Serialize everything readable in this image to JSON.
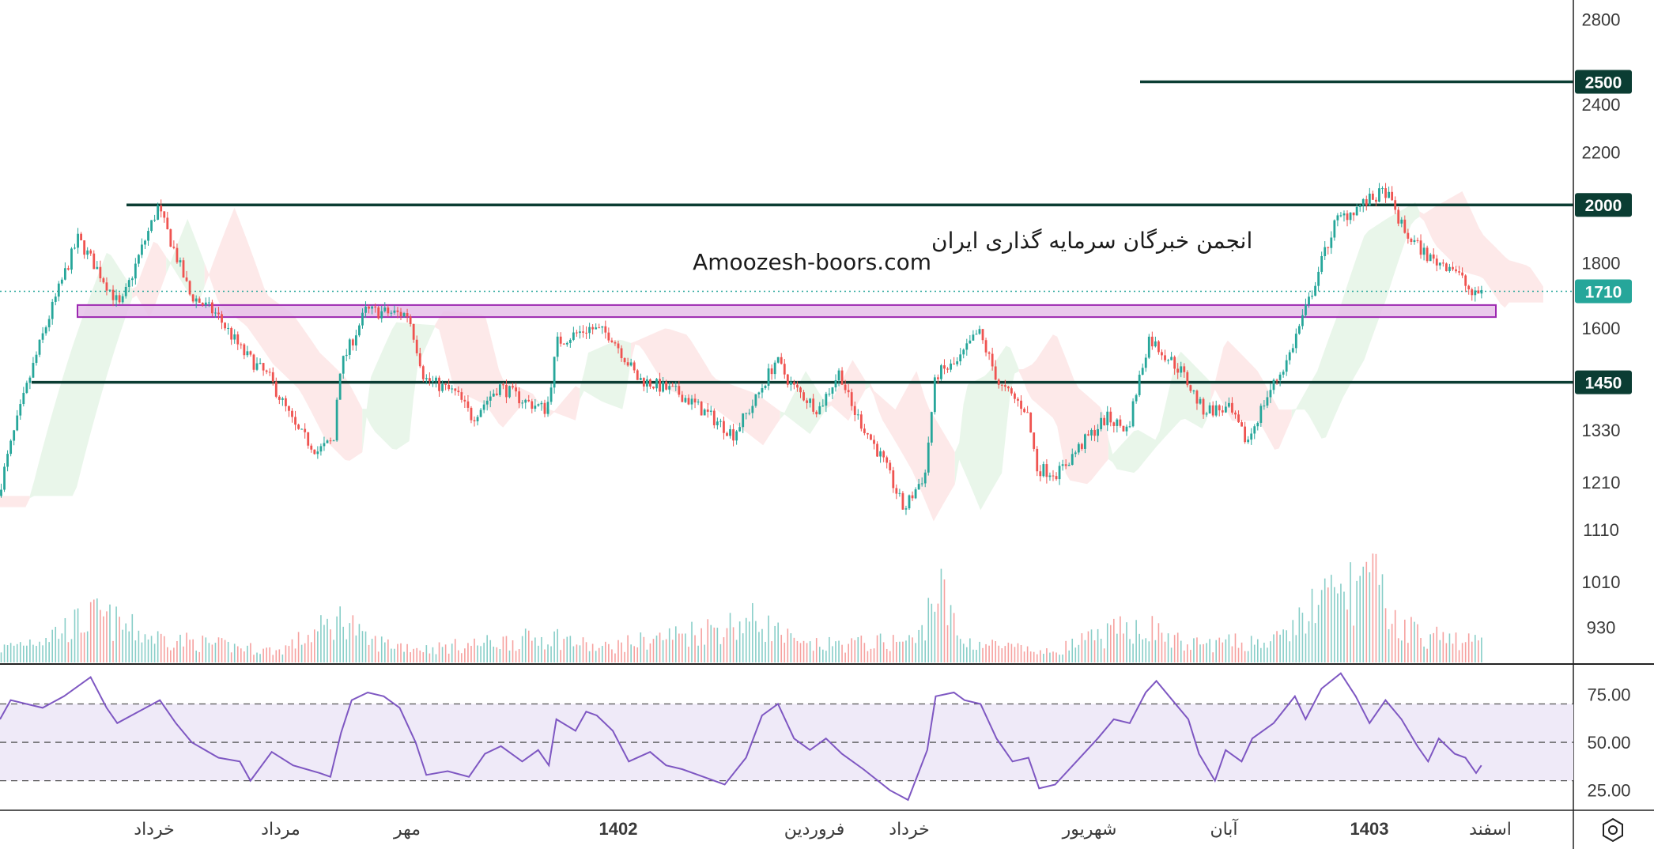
{
  "watermark": {
    "line1": "انجمن خبرگان سرمایه گذاری ایران",
    "line2": "Amoozesh-boors.com"
  },
  "colors": {
    "up": "#26a69a",
    "down": "#ef5350",
    "level_line": "#0b3d33",
    "zone_fill": "#e6bfe9",
    "zone_stroke": "#9c27b0",
    "rsi_line": "#7e57c2",
    "rsi_band": "#efeaf8",
    "cloud_bull": "#e8f5e9",
    "cloud_bear": "#fde8e8",
    "last_price": "#26a69a"
  },
  "settings_icon": "hexagon-gear-icon",
  "chart_data": [
    {
      "type": "candlestick",
      "title": "",
      "scale": "log",
      "price_axis_ticks": [
        2800,
        2400,
        2200,
        1800,
        1600,
        1330,
        1210,
        1110,
        1010,
        930
      ],
      "ylim": [
        870,
        2900
      ],
      "horizontal_levels": [
        2500,
        2000,
        1450
      ],
      "level_labels": [
        "2500",
        "2000",
        "1450"
      ],
      "last_price": 1710,
      "last_price_label": "1710",
      "demand_zone": [
        1632,
        1668
      ],
      "time_labels": [
        {
          "text": "خرداد",
          "bold": false
        },
        {
          "text": "مرداد",
          "bold": false
        },
        {
          "text": "مهر",
          "bold": false
        },
        {
          "text": "1402",
          "bold": true
        },
        {
          "text": "فروردین",
          "bold": false
        },
        {
          "text": "خرداد",
          "bold": false
        },
        {
          "text": "شهریور",
          "bold": false
        },
        {
          "text": "آبان",
          "bold": false
        },
        {
          "text": "1403",
          "bold": true
        },
        {
          "text": "اسفند",
          "bold": false
        }
      ],
      "price_path": [
        [
          0,
          1180
        ],
        [
          40,
          1560
        ],
        [
          75,
          1880
        ],
        [
          115,
          1660
        ],
        [
          150,
          1990
        ],
        [
          180,
          1700
        ],
        [
          205,
          1640
        ],
        [
          230,
          1530
        ],
        [
          255,
          1460
        ],
        [
          280,
          1330
        ],
        [
          300,
          1280
        ],
        [
          315,
          1305
        ],
        [
          320,
          1480
        ],
        [
          345,
          1650
        ],
        [
          385,
          1640
        ],
        [
          400,
          1460
        ],
        [
          430,
          1420
        ],
        [
          445,
          1360
        ],
        [
          470,
          1440
        ],
        [
          495,
          1400
        ],
        [
          515,
          1380
        ],
        [
          525,
          1560
        ],
        [
          555,
          1600
        ],
        [
          575,
          1580
        ],
        [
          600,
          1460
        ],
        [
          640,
          1420
        ],
        [
          690,
          1320
        ],
        [
          710,
          1400
        ],
        [
          730,
          1510
        ],
        [
          745,
          1440
        ],
        [
          770,
          1380
        ],
        [
          790,
          1480
        ],
        [
          800,
          1390
        ],
        [
          830,
          1260
        ],
        [
          850,
          1150
        ],
        [
          870,
          1230
        ],
        [
          880,
          1470
        ],
        [
          900,
          1500
        ],
        [
          920,
          1590
        ],
        [
          940,
          1440
        ],
        [
          965,
          1380
        ],
        [
          975,
          1240
        ],
        [
          995,
          1230
        ],
        [
          1015,
          1290
        ],
        [
          1040,
          1360
        ],
        [
          1060,
          1330
        ],
        [
          1080,
          1570
        ],
        [
          1110,
          1480
        ],
        [
          1130,
          1380
        ],
        [
          1155,
          1380
        ],
        [
          1172,
          1300
        ],
        [
          1190,
          1410
        ],
        [
          1210,
          1510
        ],
        [
          1230,
          1680
        ],
        [
          1255,
          1940
        ],
        [
          1275,
          1990
        ],
        [
          1302,
          2050
        ],
        [
          1320,
          1900
        ],
        [
          1345,
          1810
        ],
        [
          1365,
          1790
        ],
        [
          1385,
          1690
        ],
        [
          1390,
          1710
        ]
      ],
      "volume_profile": [
        [
          0,
          0.15
        ],
        [
          40,
          0.3
        ],
        [
          90,
          0.55
        ],
        [
          140,
          0.3
        ],
        [
          200,
          0.2
        ],
        [
          260,
          0.12
        ],
        [
          325,
          0.55
        ],
        [
          340,
          0.25
        ],
        [
          400,
          0.15
        ],
        [
          520,
          0.3
        ],
        [
          560,
          0.15
        ],
        [
          710,
          0.5
        ],
        [
          750,
          0.18
        ],
        [
          860,
          0.25
        ],
        [
          878,
          0.95
        ],
        [
          900,
          0.25
        ],
        [
          980,
          0.1
        ],
        [
          1070,
          0.45
        ],
        [
          1110,
          0.2
        ],
        [
          1200,
          0.25
        ],
        [
          1230,
          0.65
        ],
        [
          1260,
          0.85
        ],
        [
          1285,
          1.0
        ],
        [
          1310,
          0.45
        ],
        [
          1340,
          0.3
        ],
        [
          1390,
          0.22
        ]
      ]
    },
    {
      "type": "line",
      "title": "",
      "ticks": [
        75,
        50,
        25
      ],
      "tick_labels": [
        "75.00",
        "50.00",
        "25.00"
      ],
      "ylim": [
        15,
        90
      ],
      "band": [
        30,
        70
      ],
      "rsi": [
        [
          0,
          62
        ],
        [
          10,
          72
        ],
        [
          40,
          68
        ],
        [
          60,
          74
        ],
        [
          85,
          84
        ],
        [
          100,
          68
        ],
        [
          110,
          60
        ],
        [
          130,
          66
        ],
        [
          150,
          72
        ],
        [
          165,
          60
        ],
        [
          180,
          50
        ],
        [
          205,
          42
        ],
        [
          225,
          40
        ],
        [
          235,
          30
        ],
        [
          255,
          45
        ],
        [
          275,
          38
        ],
        [
          300,
          34
        ],
        [
          310,
          32
        ],
        [
          320,
          55
        ],
        [
          330,
          72
        ],
        [
          345,
          76
        ],
        [
          360,
          74
        ],
        [
          375,
          68
        ],
        [
          390,
          50
        ],
        [
          400,
          33
        ],
        [
          420,
          35
        ],
        [
          440,
          32
        ],
        [
          455,
          44
        ],
        [
          470,
          48
        ],
        [
          490,
          40
        ],
        [
          505,
          46
        ],
        [
          515,
          38
        ],
        [
          522,
          62
        ],
        [
          540,
          56
        ],
        [
          550,
          66
        ],
        [
          560,
          64
        ],
        [
          575,
          56
        ],
        [
          590,
          40
        ],
        [
          610,
          45
        ],
        [
          625,
          38
        ],
        [
          640,
          36
        ],
        [
          660,
          32
        ],
        [
          680,
          28
        ],
        [
          700,
          42
        ],
        [
          715,
          64
        ],
        [
          730,
          70
        ],
        [
          745,
          52
        ],
        [
          760,
          46
        ],
        [
          775,
          52
        ],
        [
          790,
          44
        ],
        [
          810,
          36
        ],
        [
          835,
          25
        ],
        [
          852,
          20
        ],
        [
          870,
          46
        ],
        [
          878,
          74
        ],
        [
          895,
          76
        ],
        [
          905,
          72
        ],
        [
          920,
          70
        ],
        [
          935,
          52
        ],
        [
          950,
          40
        ],
        [
          965,
          42
        ],
        [
          975,
          26
        ],
        [
          990,
          28
        ],
        [
          1010,
          40
        ],
        [
          1030,
          52
        ],
        [
          1045,
          62
        ],
        [
          1060,
          60
        ],
        [
          1075,
          76
        ],
        [
          1085,
          82
        ],
        [
          1100,
          72
        ],
        [
          1115,
          62
        ],
        [
          1125,
          44
        ],
        [
          1140,
          30
        ],
        [
          1150,
          46
        ],
        [
          1165,
          40
        ],
        [
          1175,
          52
        ],
        [
          1195,
          60
        ],
        [
          1215,
          74
        ],
        [
          1225,
          62
        ],
        [
          1240,
          78
        ],
        [
          1258,
          86
        ],
        [
          1272,
          74
        ],
        [
          1285,
          60
        ],
        [
          1300,
          72
        ],
        [
          1315,
          62
        ],
        [
          1330,
          48
        ],
        [
          1340,
          40
        ],
        [
          1350,
          52
        ],
        [
          1365,
          44
        ],
        [
          1375,
          42
        ],
        [
          1385,
          34
        ],
        [
          1390,
          38
        ]
      ]
    }
  ]
}
